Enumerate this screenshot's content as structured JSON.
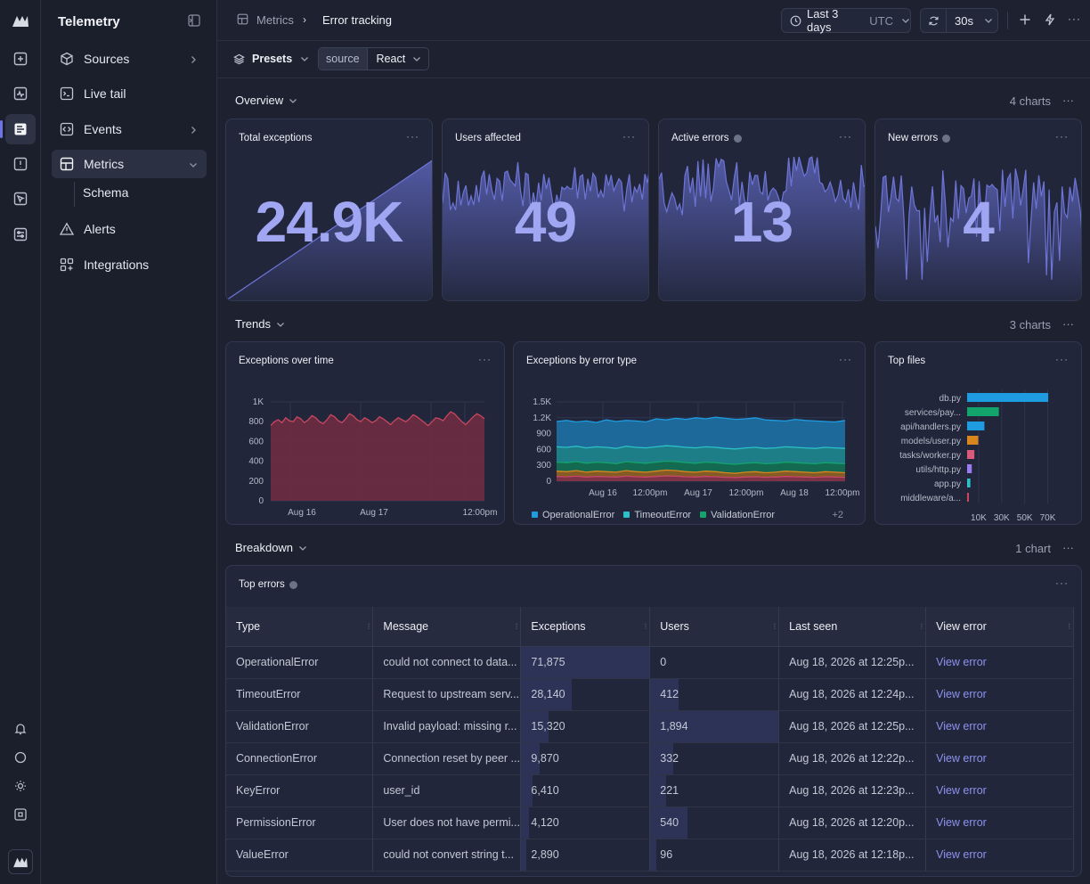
{
  "app": {
    "title": "Telemetry"
  },
  "sidebar": {
    "items": [
      {
        "label": "Sources",
        "icon": "cube-icon",
        "has_chevron": true
      },
      {
        "label": "Live tail",
        "icon": "terminal-icon",
        "has_chevron": false
      },
      {
        "label": "Events",
        "icon": "code-icon",
        "has_chevron": true
      },
      {
        "label": "Metrics",
        "icon": "grid-icon",
        "has_chevron": true,
        "expanded": true,
        "selected": true
      },
      {
        "label": "Alerts",
        "icon": "warning-icon",
        "has_chevron": false
      },
      {
        "label": "Integrations",
        "icon": "integrations-icon",
        "has_chevron": false
      }
    ],
    "subitems": [
      {
        "label": "Schema"
      }
    ]
  },
  "breadcrumb": {
    "parent": "Metrics",
    "current": "Error tracking"
  },
  "toolbar": {
    "time_range": "Last 3 days",
    "timezone": "UTC",
    "refresh_interval": "30s"
  },
  "filters": {
    "presets_label": "Presets",
    "filter_key": "source",
    "filter_value": "React"
  },
  "sections": {
    "overview": {
      "label": "Overview",
      "count": "4 charts"
    },
    "trends": {
      "label": "Trends",
      "count": "3 charts"
    },
    "breakdown": {
      "label": "Breakdown",
      "count": "1 chart"
    }
  },
  "overview_cards": [
    {
      "title": "Total exceptions",
      "value": "24.9K",
      "info": false
    },
    {
      "title": "Users affected",
      "value": "49",
      "info": false
    },
    {
      "title": "Active errors",
      "value": "13",
      "info": true
    },
    {
      "title": "New errors",
      "value": "4",
      "info": true
    }
  ],
  "chart_data": [
    {
      "type": "area",
      "title": "Exceptions over time",
      "x_ticks": [
        "Aug 16",
        "Aug 17",
        "12:00pm"
      ],
      "y_ticks": [
        "0",
        "200",
        "400",
        "600",
        "800",
        "1K"
      ],
      "ylim": [
        0,
        1000
      ],
      "series": [
        {
          "color": "#c9475e",
          "values": [
            760,
            800,
            820,
            790,
            840,
            810,
            800,
            850,
            830,
            790,
            820,
            860,
            840,
            800,
            780,
            820,
            870,
            850,
            810,
            790,
            830,
            880,
            860,
            820,
            800,
            840,
            820,
            790,
            810,
            850,
            830,
            800,
            770,
            810,
            840,
            820,
            800,
            830,
            870,
            850,
            820,
            790,
            760,
            800,
            840,
            830,
            810,
            860,
            900,
            880,
            840,
            800,
            770,
            810,
            850,
            880,
            860,
            830
          ]
        }
      ]
    },
    {
      "type": "area",
      "title": "Exceptions by error type",
      "x_ticks": [
        "Aug 16",
        "12:00pm",
        "Aug 17",
        "12:00pm",
        "Aug 18",
        "12:00pm"
      ],
      "y_ticks": [
        "0",
        "300",
        "600",
        "900",
        "1.2K",
        "1.5K"
      ],
      "ylim": [
        0,
        1500
      ],
      "legend_more": "+2",
      "series": [
        {
          "name": "OperationalError",
          "color": "#1f9be0",
          "values": [
            1130,
            1150,
            1120,
            1140,
            1110,
            1160,
            1130,
            1150,
            1140,
            1120,
            1180,
            1160,
            1190,
            1170,
            1200,
            1180,
            1210,
            1190,
            1170,
            1180,
            1200,
            1160,
            1150,
            1140,
            1170,
            1150,
            1140,
            1130,
            1120,
            1150
          ]
        },
        {
          "name": "TimeoutError",
          "color": "#2cc0c9",
          "values": [
            650,
            640,
            660,
            630,
            650,
            640,
            620,
            660,
            640,
            630,
            650,
            670,
            660,
            640,
            630,
            650,
            640,
            620,
            610,
            630,
            640,
            620,
            630,
            650,
            640,
            630,
            620,
            640,
            630,
            620
          ]
        },
        {
          "name": "ValidationError",
          "color": "#12a46b",
          "values": [
            360,
            350,
            370,
            340,
            360,
            350,
            330,
            370,
            350,
            340,
            360,
            380,
            370,
            350,
            340,
            360,
            350,
            330,
            320,
            340,
            350,
            330,
            340,
            360,
            350,
            340,
            330,
            350,
            340,
            330
          ]
        },
        {
          "name": "",
          "color": "#d9861f",
          "values": [
            190,
            180,
            200,
            170,
            190,
            180,
            170,
            200,
            180,
            170,
            190,
            210,
            200,
            180,
            170,
            190,
            180,
            160,
            150,
            170,
            180,
            160,
            170,
            190,
            180,
            170,
            160,
            180,
            170,
            160
          ]
        },
        {
          "name": "",
          "color": "#c7476a",
          "values": [
            90,
            85,
            95,
            80,
            90,
            85,
            80,
            95,
            85,
            80,
            90,
            100,
            95,
            85,
            80,
            90,
            85,
            75,
            70,
            80,
            85,
            75,
            80,
            90,
            85,
            80,
            75,
            85,
            80,
            75
          ]
        }
      ]
    },
    {
      "type": "bar",
      "orientation": "horizontal",
      "title": "Top files",
      "categories": [
        "db.py",
        "services/pay...",
        "api/handlers.py",
        "models/user.py",
        "tasks/worker.py",
        "utils/http.py",
        "app.py",
        "middleware/a..."
      ],
      "values": [
        71875,
        28140,
        15320,
        9870,
        6410,
        4120,
        2890,
        1500
      ],
      "colors": [
        "#1f9be0",
        "#12a46b",
        "#1f9be0",
        "#d9861f",
        "#d95a7a",
        "#9b7cf0",
        "#2cc0c9",
        "#c9475e"
      ],
      "x_ticks": [
        "10K",
        "30K",
        "50K",
        "70K"
      ],
      "xlim": [
        0,
        75000
      ]
    }
  ],
  "top_errors": {
    "title": "Top errors",
    "columns": [
      "Type",
      "Message",
      "Exceptions",
      "Users",
      "Last seen",
      "View error"
    ],
    "rows": [
      {
        "type": "OperationalError",
        "message": "could not connect to data...",
        "exceptions": "71,875",
        "exceptions_share": 1.0,
        "users": "0",
        "users_share": 0.0,
        "last_seen": "Aug 18, 2026 at 12:25p...",
        "action": "View error"
      },
      {
        "type": "TimeoutError",
        "message": "Request to upstream serv...",
        "exceptions": "28,140",
        "exceptions_share": 0.39,
        "users": "412",
        "users_share": 0.22,
        "last_seen": "Aug 18, 2026 at 12:24p...",
        "action": "View error"
      },
      {
        "type": "ValidationError",
        "message": "Invalid payload: missing r...",
        "exceptions": "15,320",
        "exceptions_share": 0.21,
        "users": "1,894",
        "users_share": 1.0,
        "last_seen": "Aug 18, 2026 at 12:25p...",
        "action": "View error"
      },
      {
        "type": "ConnectionError",
        "message": "Connection reset by peer ...",
        "exceptions": "9,870",
        "exceptions_share": 0.14,
        "users": "332",
        "users_share": 0.18,
        "last_seen": "Aug 18, 2026 at 12:22p...",
        "action": "View error"
      },
      {
        "type": "KeyError",
        "message": "user_id",
        "exceptions": "6,410",
        "exceptions_share": 0.09,
        "users": "221",
        "users_share": 0.12,
        "last_seen": "Aug 18, 2026 at 12:23p...",
        "action": "View error"
      },
      {
        "type": "PermissionError",
        "message": "User does not have permi...",
        "exceptions": "4,120",
        "exceptions_share": 0.06,
        "users": "540",
        "users_share": 0.29,
        "last_seen": "Aug 18, 2026 at 12:20p...",
        "action": "View error"
      },
      {
        "type": "ValueError",
        "message": "could not convert string t...",
        "exceptions": "2,890",
        "exceptions_share": 0.04,
        "users": "96",
        "users_share": 0.05,
        "last_seen": "Aug 18, 2026 at 12:18p...",
        "action": "View error"
      }
    ]
  }
}
